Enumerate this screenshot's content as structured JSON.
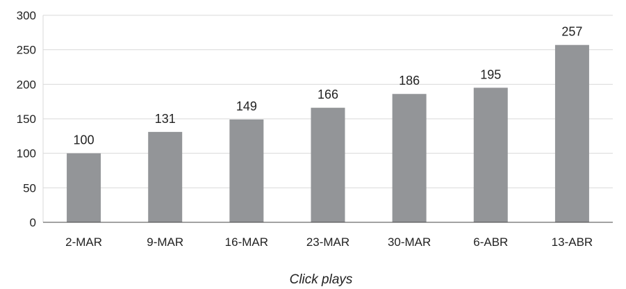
{
  "chart_data": {
    "type": "bar",
    "categories": [
      "2-MAR",
      "9-MAR",
      "16-MAR",
      "23-MAR",
      "30-MAR",
      "6-ABR",
      "13-ABR"
    ],
    "values": [
      100,
      131,
      149,
      166,
      186,
      195,
      257
    ],
    "data_labels": [
      "100",
      "131",
      "149",
      "166",
      "186",
      "195",
      "257"
    ],
    "title": "",
    "xlabel": "Click plays",
    "ylabel": "",
    "ylim": [
      0,
      300
    ],
    "yticks": [
      0,
      50,
      100,
      150,
      200,
      250,
      300
    ],
    "grid": true,
    "legend": "none",
    "bar_color": "#939598",
    "grid_color": "#d9d9d9",
    "axis_color": "#444444"
  }
}
